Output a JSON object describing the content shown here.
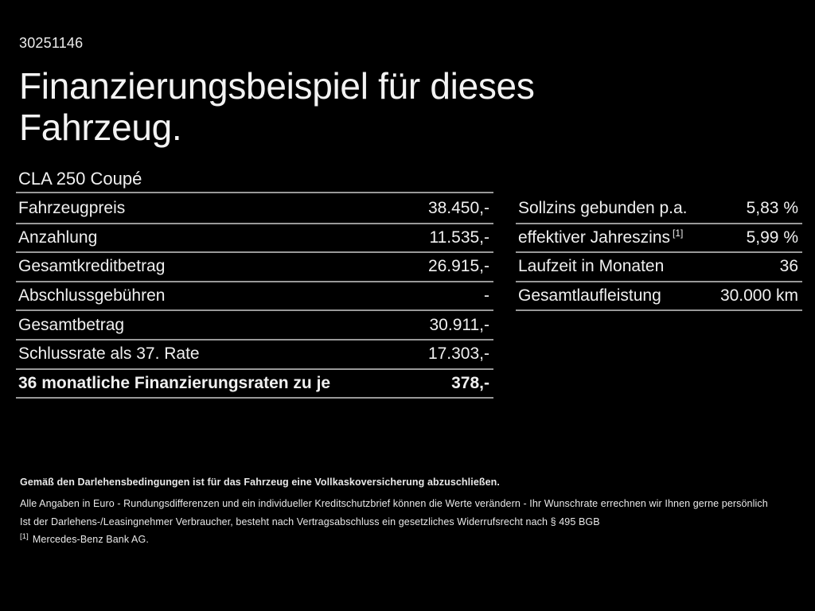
{
  "header": {
    "document_id": "30251146",
    "title_line1": "Finanzierungsbeispiel für dieses",
    "title_line2": "Fahrzeug.",
    "model": "CLA 250 Coupé"
  },
  "left_table": {
    "rows": [
      {
        "label": "Fahrzeugpreis",
        "value": "38.450,-"
      },
      {
        "label": "Anzahlung",
        "value": "11.535,-"
      },
      {
        "label": "Gesamtkreditbetrag",
        "value": "26.915,-"
      },
      {
        "label": "Abschlussgebühren",
        "value": "-"
      },
      {
        "label": "Gesamtbetrag",
        "value": "30.911,-"
      },
      {
        "label": "Schlussrate als 37. Rate",
        "value": "17.303,-"
      },
      {
        "label": "36 monatliche Finanzierungsraten zu je",
        "value": "378,-"
      }
    ]
  },
  "right_table": {
    "rows": [
      {
        "label": "Sollzins gebunden p.a.",
        "sup_marker": "",
        "value": "5,83 %"
      },
      {
        "label": "effektiver Jahreszins",
        "sup_marker": "[1]",
        "value": "5,99 %"
      },
      {
        "label": "Laufzeit in Monaten",
        "sup_marker": "",
        "value": "36"
      },
      {
        "label": "Gesamtlaufleistung",
        "sup_marker": "",
        "value": "30.000 km"
      }
    ]
  },
  "footnotes": {
    "insurance_note": "Gemäß den Darlehensbedingungen ist für das Fahrzeug eine Vollkaskoversicherung abzuschließen.",
    "disclaimer_1": "Alle Angaben in Euro - Rundungsdifferenzen und ein individueller Kreditschutzbrief können die Werte verändern - Ihr Wunschrate errechnen wir Ihnen gerne persönlich",
    "disclaimer_2": "Ist der Darlehens-/Leasingnehmer Verbraucher, besteht nach Vertragsabschluss ein gesetzliches Widerrufsrecht nach § 495 BGB",
    "ref_marker": "[1]",
    "ref_text": "Mercedes-Benz Bank AG."
  },
  "colors": {
    "background": "#000000",
    "text": "#f0f0f0",
    "divider": "#999999"
  }
}
